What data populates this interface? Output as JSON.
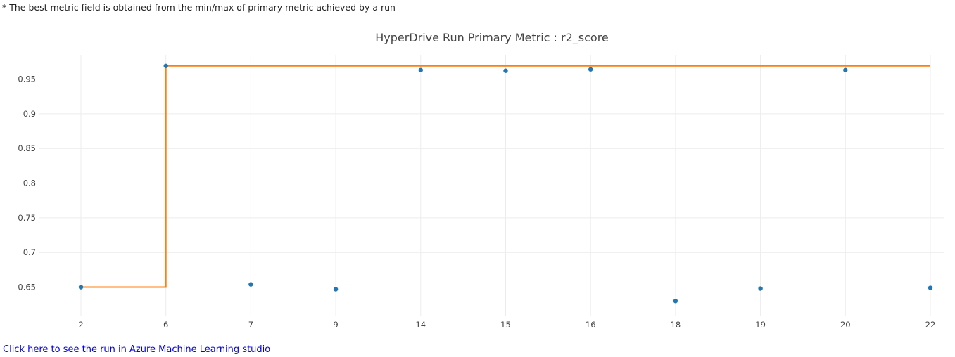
{
  "note": "* The best metric field is obtained from the min/max of primary metric achieved by a run",
  "link_text": "Click here to see the run in Azure Machine Learning studio",
  "chart_data": {
    "type": "scatter",
    "title": "HyperDrive Run Primary Metric : r2_score",
    "xlabel": "",
    "ylabel": "",
    "x_type": "category",
    "categories": [
      "2",
      "6",
      "7",
      "9",
      "14",
      "15",
      "16",
      "18",
      "19",
      "20",
      "22"
    ],
    "y_ticks": [
      0.65,
      0.7,
      0.75,
      0.8,
      0.85,
      0.9,
      0.95
    ],
    "y_tick_labels": [
      "0.65",
      "0.7",
      "0.75",
      "0.8",
      "0.85",
      "0.9",
      "0.95"
    ],
    "ylim": [
      0.608,
      0.985
    ],
    "grid": true,
    "series": [
      {
        "mode": "markers",
        "color": "#1f77b4",
        "values": [
          0.65,
          0.969,
          0.654,
          0.647,
          0.963,
          0.962,
          0.964,
          0.63,
          0.648,
          0.963,
          0.649
        ]
      },
      {
        "mode": "step-line",
        "color": "#ff7f0e",
        "values": [
          0.65,
          0.969,
          0.969,
          0.969,
          0.969,
          0.969,
          0.969,
          0.969,
          0.969,
          0.969,
          0.969
        ]
      }
    ]
  }
}
